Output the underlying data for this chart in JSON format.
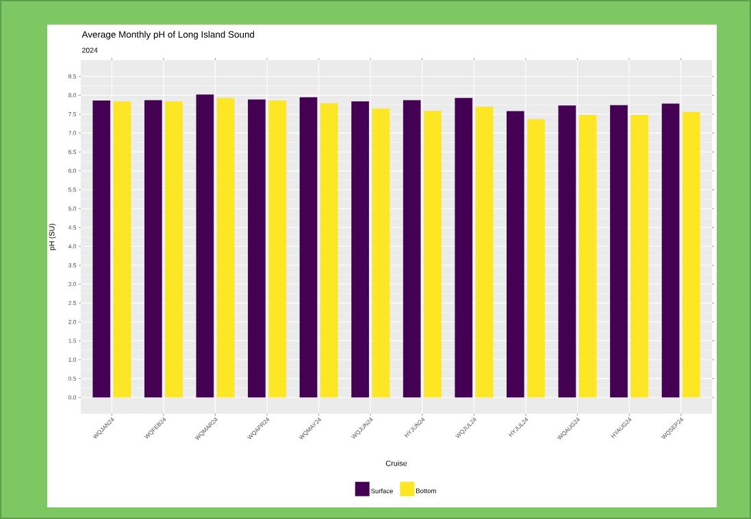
{
  "chart_data": {
    "type": "bar",
    "title": "Average Monthly pH of Long Island Sound",
    "subtitle": "2024",
    "xlabel": "Cruise",
    "ylabel": "pH (SU)",
    "categories": [
      "WQJAN24",
      "WQFEB24",
      "WQMAR24",
      "WQAPR24",
      "WQMAY24",
      "WQJUN24",
      "HYJUN24",
      "WQJUL24",
      "HYJUL24",
      "WQAUG24",
      "HYAUG24",
      "WQSEP24"
    ],
    "series": [
      {
        "name": "Surface",
        "color": "#440154",
        "values": [
          7.86,
          7.87,
          8.02,
          7.89,
          7.95,
          7.84,
          7.87,
          7.93,
          7.58,
          7.73,
          7.74,
          7.78
        ]
      },
      {
        "name": "Bottom",
        "color": "#fde725",
        "values": [
          7.84,
          7.84,
          7.93,
          7.86,
          7.79,
          7.65,
          7.59,
          7.7,
          7.37,
          7.48,
          7.48,
          7.56
        ]
      }
    ],
    "ylim": [
      -0.43,
      8.93
    ],
    "yticks": [
      {
        "value": 0,
        "label": "0.0"
      },
      {
        "value": 0.5,
        "label": "0.5"
      },
      {
        "value": 1,
        "label": "1.0"
      },
      {
        "value": 1.5,
        "label": "1.5"
      },
      {
        "value": 2,
        "label": "2.0"
      },
      {
        "value": 2.5,
        "label": "2.5"
      },
      {
        "value": 3,
        "label": "3.0"
      },
      {
        "value": 3.5,
        "label": "3.5"
      },
      {
        "value": 4,
        "label": "4.0"
      },
      {
        "value": 4.5,
        "label": "4.5"
      },
      {
        "value": 5,
        "label": "5.0"
      },
      {
        "value": 5.5,
        "label": "5.5"
      },
      {
        "value": 6,
        "label": "6.0"
      },
      {
        "value": 6.5,
        "label": "6.5"
      },
      {
        "value": 7,
        "label": "7.0"
      },
      {
        "value": 7.5,
        "label": "7.5"
      },
      {
        "value": 8,
        "label": "8.0"
      },
      {
        "value": 8.5,
        "label": "8.5"
      }
    ],
    "grid": true,
    "legend": "bottom"
  }
}
